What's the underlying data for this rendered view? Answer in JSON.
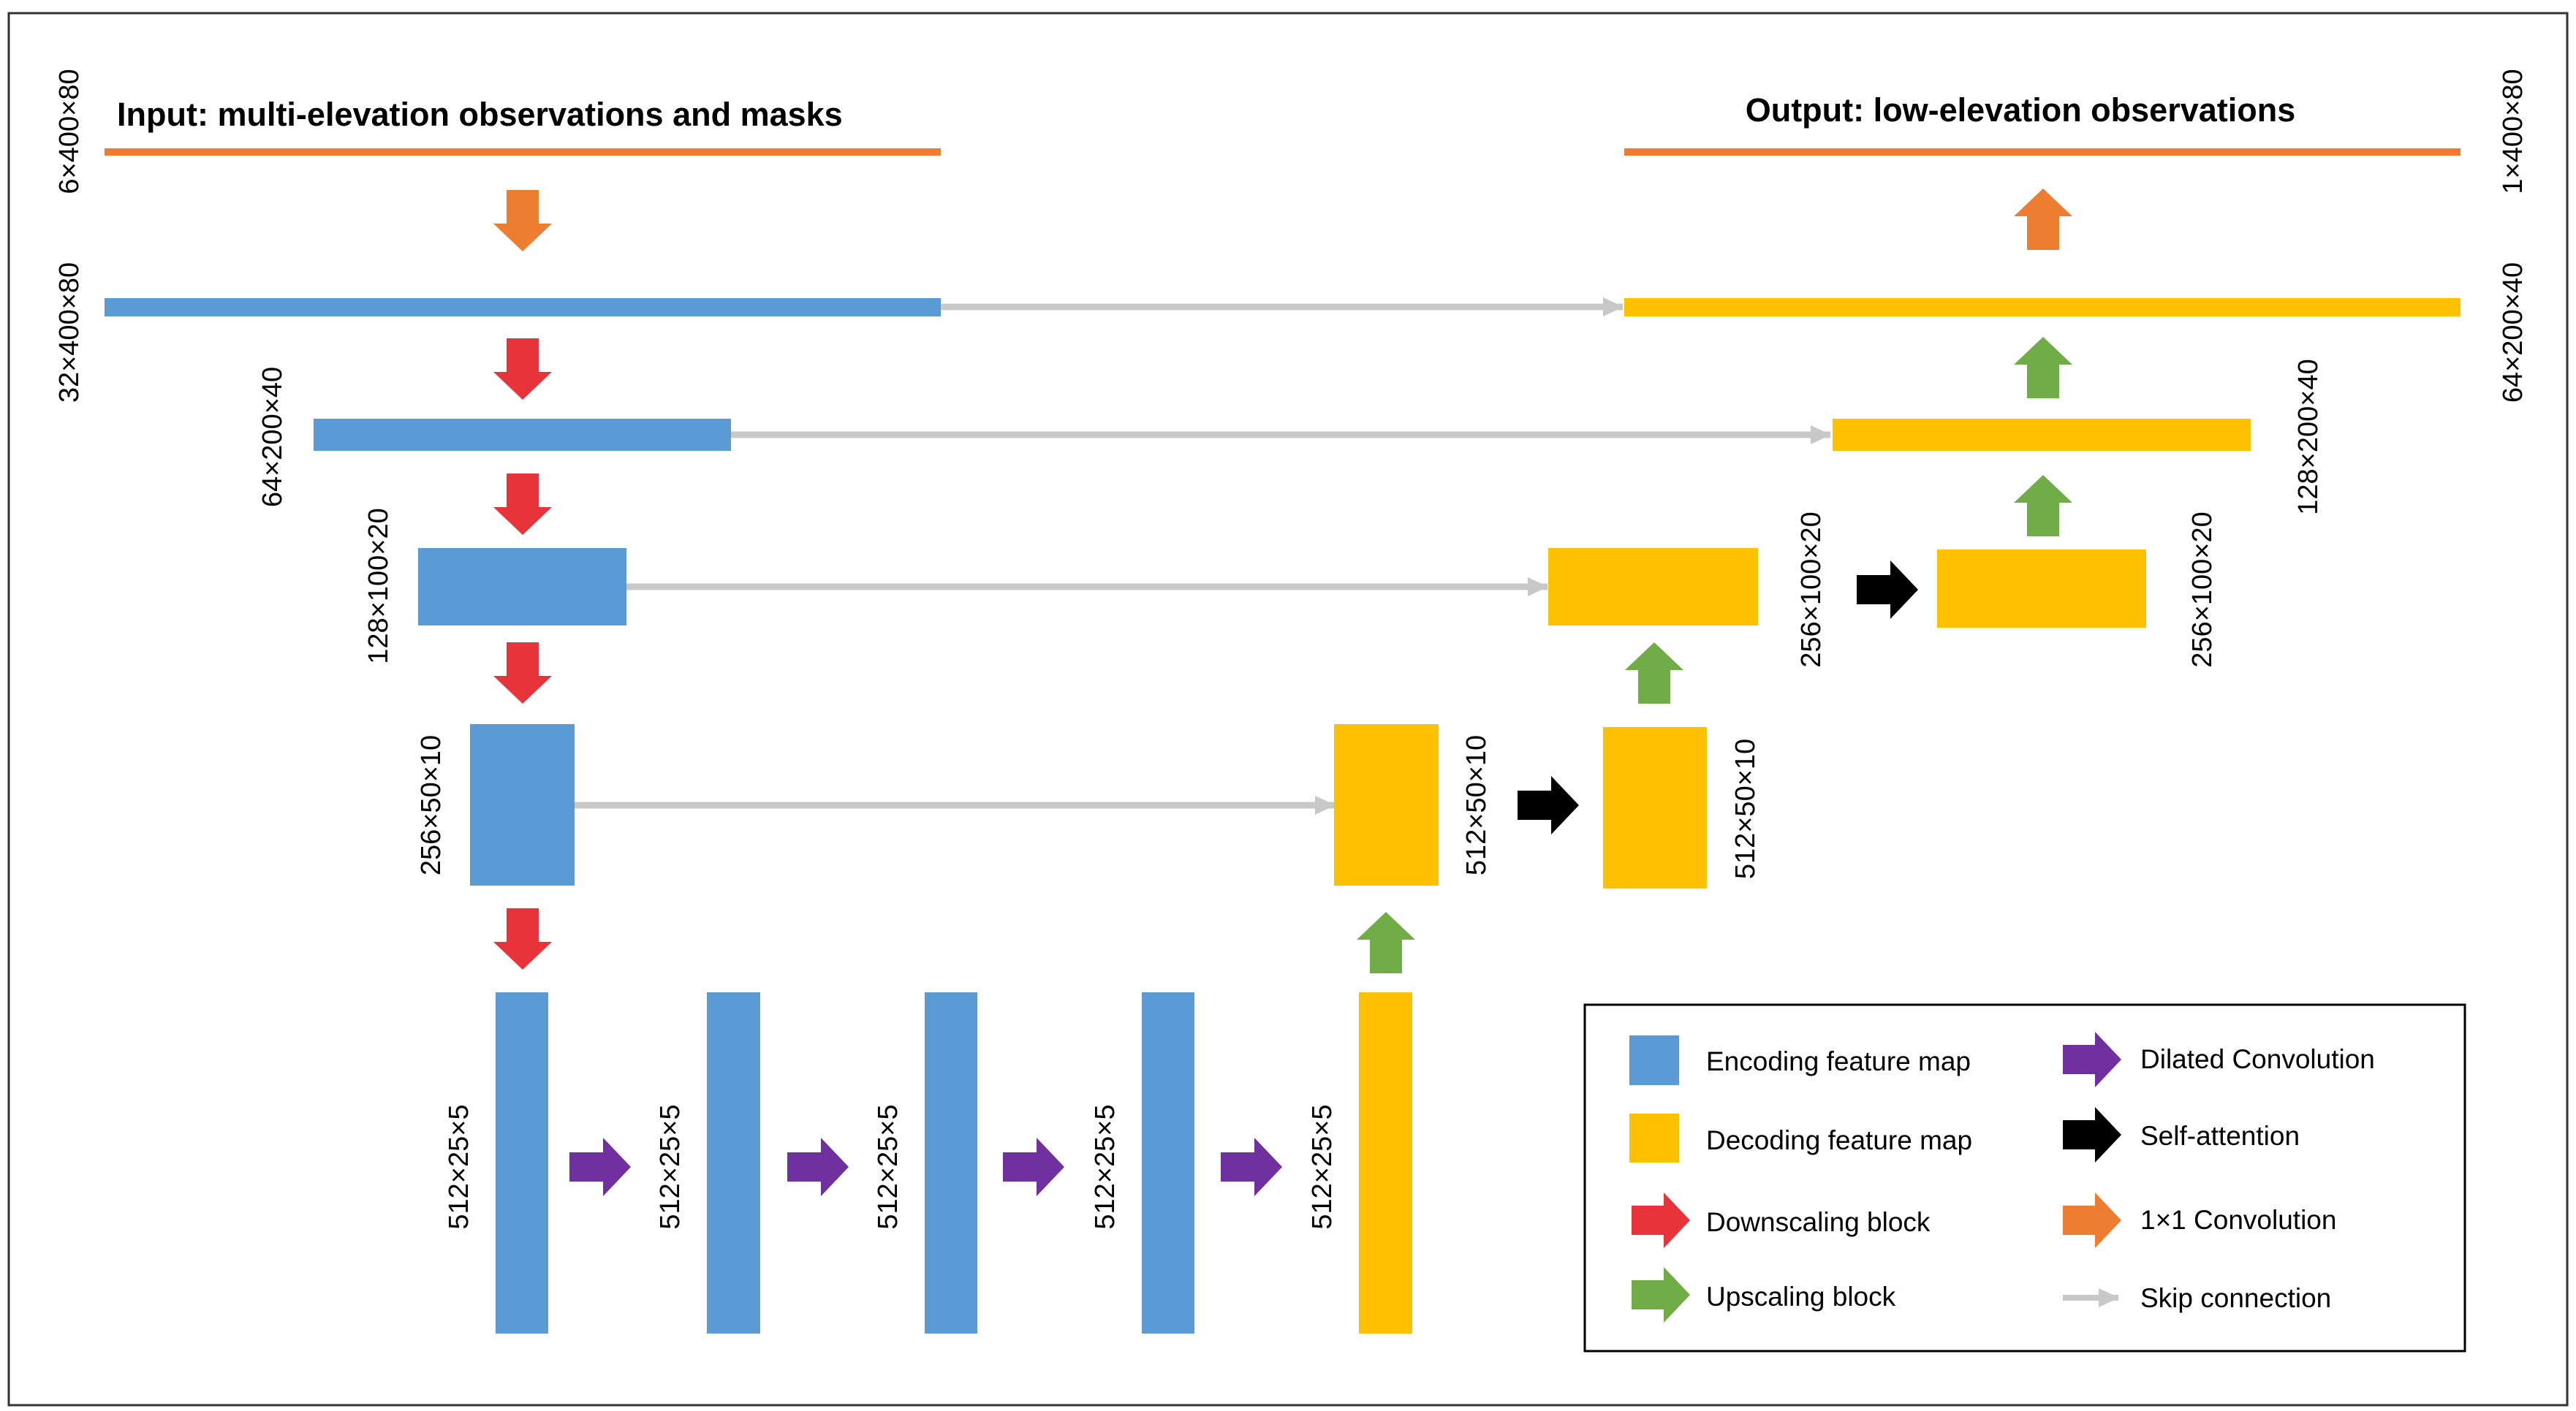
{
  "input_title": "Input: multi-elevation observations and masks",
  "output_title": "Output: low-elevation observations",
  "dims": {
    "input": "6×400×80",
    "enc1": "32×400×80",
    "enc2": "64×200×40",
    "enc3": "128×100×20",
    "enc4": "256×50×10",
    "bottleneck": "512×25×5",
    "dec4a": "512×50×10",
    "dec4b": "512×50×10",
    "dec3a": "256×100×20",
    "dec3b": "256×100×20",
    "dec2": "128×200×40",
    "dec1": "64×200×40",
    "output": "1×400×80"
  },
  "legend": {
    "encoding": "Encoding feature map",
    "decoding": "Decoding feature map",
    "downscaling": "Downscaling block",
    "upscaling": "Upscaling block",
    "dilated": "Dilated Convolution",
    "self_attention": "Self-attention",
    "conv1x1": "1×1 Convolution",
    "skip": "Skip connection"
  },
  "colors": {
    "encoding": "#5b9bd5",
    "decoding": "#ffc000",
    "downscaling": "#e8333a",
    "upscaling": "#70ad47",
    "dilated": "#7030a0",
    "self_attention": "#000000",
    "conv1x1": "#ed7d31",
    "skip": "#c8c8c8",
    "io_line": "#ed7d31"
  }
}
